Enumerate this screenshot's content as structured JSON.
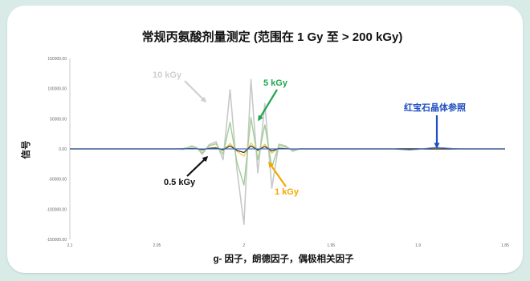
{
  "chart_data": {
    "type": "line",
    "title": "常规丙氨酸剂量测定 (范围在 1 Gy 至 > 200 kGy)",
    "xlabel": "g- 因子，朗德因子，偶极相关因子",
    "ylabel": "信号",
    "xlim": [
      2.1,
      1.85
    ],
    "ylim": [
      -150000,
      150000
    ],
    "x_ticks": [
      "2.1",
      "2.05",
      "2",
      "1.95",
      "1.9",
      "1.85"
    ],
    "y_ticks": [
      "150000.00",
      "100000.00",
      "50000.00",
      "0.00",
      "-50000.00",
      "-100000.00",
      "-150000.00"
    ],
    "grid": false,
    "colors": {
      "10 kGy": "#c8c8c8",
      "5 kGy": "#9fcf95",
      "1 kGy": "#f2c64a",
      "0.5 kGy": "#2b2b2b",
      "红宝石晶体参照": "#4a6fc6"
    },
    "series": [
      {
        "name": "10 kGy",
        "x": [
          2.1,
          2.04,
          2.035,
          2.03,
          2.027,
          2.024,
          2.02,
          2.016,
          2.012,
          2.008,
          2.004,
          2.0,
          1.996,
          1.992,
          1.988,
          1.984,
          1.98,
          1.976,
          1.972,
          1.968,
          1.962,
          1.85
        ],
        "values": [
          0,
          0,
          -1000,
          5000,
          2000,
          -9000,
          7000,
          12000,
          -18000,
          98000,
          -35000,
          -125000,
          115000,
          -40000,
          75000,
          -65000,
          8000,
          5000,
          -4000,
          0,
          0,
          0
        ]
      },
      {
        "name": "5 kGy",
        "x": [
          2.1,
          2.04,
          2.035,
          2.03,
          2.027,
          2.024,
          2.02,
          2.016,
          2.012,
          2.008,
          2.004,
          2.0,
          1.996,
          1.992,
          1.988,
          1.984,
          1.98,
          1.976,
          1.972,
          1.968,
          1.962,
          1.85
        ],
        "values": [
          0,
          0,
          500,
          3500,
          1500,
          -6500,
          5000,
          8500,
          -9000,
          44000,
          -22000,
          -60000,
          52000,
          -18000,
          40000,
          -30000,
          6000,
          3500,
          -2500,
          0,
          0,
          0
        ]
      },
      {
        "name": "1 kGy",
        "x": [
          2.1,
          2.04,
          2.035,
          2.03,
          2.027,
          2.024,
          2.02,
          2.016,
          2.012,
          2.008,
          2.004,
          2.0,
          1.996,
          1.992,
          1.988,
          1.984,
          1.98,
          1.976,
          1.972,
          1.968,
          1.962,
          1.85
        ],
        "values": [
          0,
          0,
          300,
          800,
          500,
          -2000,
          1500,
          2500,
          -2500,
          9000,
          -4000,
          -12000,
          10000,
          -3500,
          8000,
          -7000,
          1500,
          800,
          -600,
          0,
          0,
          0
        ]
      },
      {
        "name": "0.5 kGy",
        "x": [
          2.1,
          2.04,
          2.035,
          2.03,
          2.027,
          2.024,
          2.02,
          2.016,
          2.012,
          2.008,
          2.004,
          2.0,
          1.996,
          1.992,
          1.988,
          1.984,
          1.98,
          1.976,
          1.972,
          1.968,
          1.962,
          1.85
        ],
        "values": [
          0,
          0,
          200,
          500,
          300,
          -1200,
          900,
          1500,
          -1500,
          5000,
          -2500,
          -6000,
          5000,
          -2000,
          4000,
          -3500,
          800,
          400,
          -300,
          0,
          0,
          0
        ]
      },
      {
        "name": "红宝石晶体参照",
        "x": [
          2.1,
          1.915,
          1.91,
          1.905,
          1.9,
          1.895,
          1.89,
          1.885,
          1.88,
          1.875,
          1.87,
          1.85
        ],
        "values": [
          0,
          0,
          -800,
          -1500,
          -600,
          800,
          2200,
          1500,
          500,
          0,
          0,
          0
        ]
      }
    ],
    "annotations": [
      {
        "text": "10 kGy",
        "series": "10 kGy"
      },
      {
        "text": "5 kGy",
        "series": "5 kGy"
      },
      {
        "text": "1 kGy",
        "series": "1 kGy"
      },
      {
        "text": "0.5 kGy",
        "series": "0.5 kGy"
      },
      {
        "text": "红宝石晶体参照",
        "series": "红宝石晶体参照"
      }
    ],
    "annotation_colors": {
      "10 kGy": "#cfcfcf",
      "5 kGy": "#1fa550",
      "1 kGy": "#f2a900",
      "0.5 kGy": "#111111",
      "红宝石晶体参照": "#1f4ec0"
    }
  }
}
